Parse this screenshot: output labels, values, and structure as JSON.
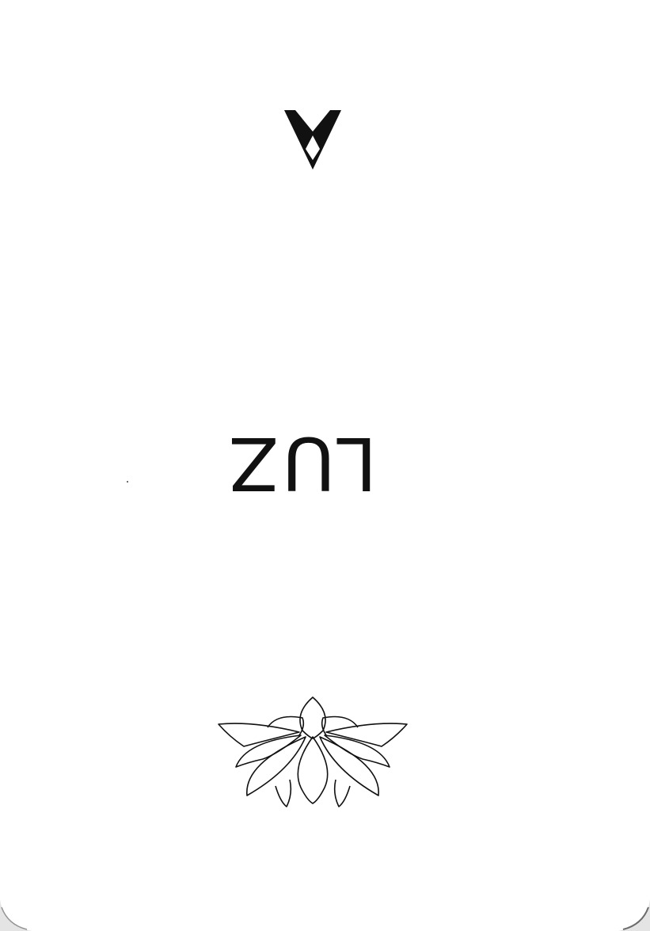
{
  "card": {
    "title": "LUZ",
    "title_orientation": "upside-down",
    "top_symbol": "triangle-diamond-icon",
    "bottom_symbol": "lotus-icon",
    "ink_color": "#111111",
    "background_color": "#ffffff"
  }
}
